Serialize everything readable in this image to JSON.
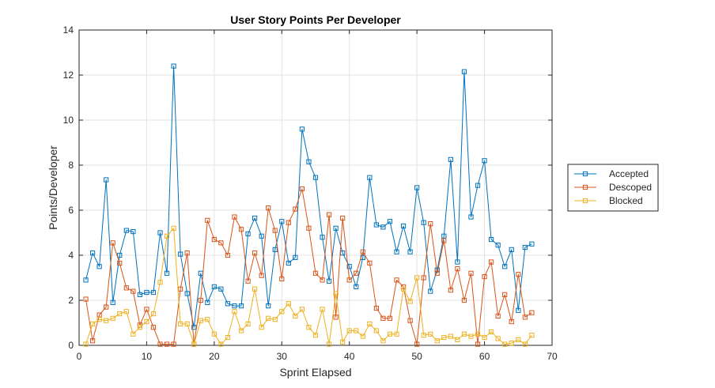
{
  "chart_data": {
    "type": "line",
    "title": "User Story Points Per Developer",
    "xlabel": "Sprint Elapsed",
    "ylabel": "Points/Developer",
    "xlim": [
      0,
      70
    ],
    "ylim": [
      0,
      14
    ],
    "xticks": [
      0,
      10,
      20,
      30,
      40,
      50,
      60,
      70
    ],
    "yticks": [
      0,
      2,
      4,
      6,
      8,
      10,
      12,
      14
    ],
    "grid": true,
    "legend_position": "right",
    "x": [
      1,
      2,
      3,
      4,
      5,
      6,
      7,
      8,
      9,
      10,
      11,
      12,
      13,
      14,
      15,
      16,
      17,
      18,
      19,
      20,
      21,
      22,
      23,
      24,
      25,
      26,
      27,
      28,
      29,
      30,
      31,
      32,
      33,
      34,
      35,
      36,
      37,
      38,
      39,
      40,
      41,
      42,
      43,
      44,
      45,
      46,
      47,
      48,
      49,
      50,
      51,
      52,
      53,
      54,
      55,
      56,
      57,
      58,
      59,
      60,
      61,
      62,
      63,
      64,
      65,
      66,
      67
    ],
    "series": [
      {
        "name": "Accepted",
        "color": "#0072BD",
        "values": [
          2.9,
          4.1,
          3.5,
          7.35,
          1.9,
          4.0,
          5.1,
          5.05,
          2.25,
          2.35,
          2.35,
          5.0,
          3.2,
          12.4,
          4.05,
          2.3,
          0.8,
          3.2,
          1.9,
          2.6,
          2.5,
          1.85,
          1.75,
          1.75,
          4.95,
          5.65,
          4.85,
          1.75,
          4.25,
          5.5,
          3.65,
          3.9,
          9.6,
          8.15,
          7.45,
          4.8,
          2.85,
          5.2,
          4.1,
          3.5,
          2.6,
          3.9,
          7.45,
          5.35,
          5.25,
          5.5,
          4.15,
          5.3,
          4.15,
          7.0,
          5.45,
          2.4,
          3.35,
          4.85,
          8.25,
          3.7,
          12.15,
          5.7,
          7.1,
          8.2,
          4.7,
          4.45,
          3.5,
          4.25,
          1.55,
          4.35,
          4.5
        ]
      },
      {
        "name": "Descoped",
        "color": "#D95319",
        "values": [
          2.05,
          0.2,
          1.35,
          1.7,
          4.55,
          3.65,
          2.55,
          2.4,
          0.9,
          1.6,
          0.8,
          0.05,
          0.05,
          0.05,
          2.5,
          4.1,
          0.05,
          2.0,
          5.55,
          4.7,
          4.55,
          4.0,
          5.7,
          5.15,
          2.85,
          4.1,
          3.1,
          6.1,
          5.1,
          2.95,
          5.45,
          6.05,
          6.95,
          5.2,
          3.2,
          2.9,
          5.8,
          1.25,
          5.65,
          2.9,
          3.2,
          4.15,
          3.65,
          1.65,
          1.2,
          1.2,
          2.9,
          2.6,
          1.1,
          0.05,
          3.0,
          5.4,
          3.2,
          4.65,
          2.45,
          3.4,
          2.0,
          3.2,
          0.05,
          3.05,
          3.7,
          1.3,
          2.25,
          1.05,
          3.15,
          1.25,
          1.45
        ]
      },
      {
        "name": "Blocked",
        "color": "#EDB120",
        "values": [
          0.05,
          0.95,
          1.15,
          1.1,
          1.2,
          1.4,
          1.5,
          0.5,
          0.8,
          1.05,
          1.4,
          2.8,
          4.85,
          5.2,
          0.95,
          0.95,
          0.05,
          1.1,
          1.15,
          0.5,
          0.05,
          0.35,
          1.5,
          0.65,
          0.95,
          2.5,
          0.8,
          1.2,
          1.15,
          1.5,
          1.85,
          1.3,
          1.6,
          0.8,
          0.45,
          1.6,
          0.05,
          2.3,
          0.15,
          0.65,
          0.65,
          0.4,
          0.95,
          0.65,
          0.2,
          0.5,
          0.5,
          2.5,
          1.95,
          3.0,
          0.45,
          0.5,
          0.2,
          0.35,
          0.4,
          0.25,
          0.5,
          0.4,
          0.5,
          0.35,
          0.6,
          0.3,
          0.05,
          0.1,
          0.25,
          0.05,
          0.45
        ]
      }
    ]
  }
}
